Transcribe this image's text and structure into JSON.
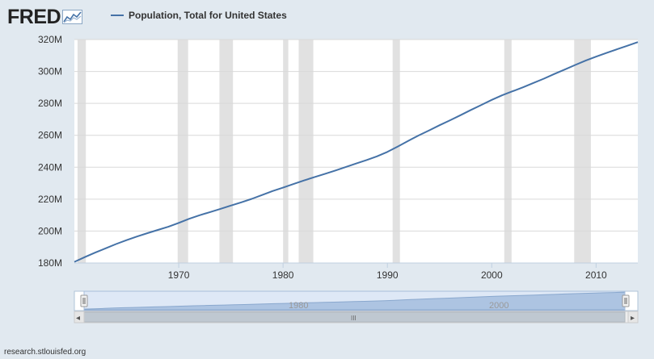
{
  "logo": {
    "text": "FRED",
    "icon": "fred-line-chart-icon"
  },
  "footer": {
    "source": "research.stlouisfed.org"
  },
  "navigator": {
    "tick_labels": [
      "1980",
      "2000"
    ],
    "scroll_left_arrow": "◂",
    "scroll_right_arrow": "▸",
    "scroll_grip": "III"
  },
  "colors": {
    "series": "#4572a7",
    "background": "#e1e9f0",
    "plot": "#ffffff",
    "recession": "#e1e1e1",
    "grid": "#d9d9d9",
    "navigator_fill": "#c2d6ee",
    "navigator_series": "#6d94c4"
  },
  "chart_data": {
    "type": "line",
    "title": "",
    "xlabel": "",
    "ylabel": "",
    "grid": true,
    "legend_position": "top-left",
    "xlim": [
      1960,
      2014
    ],
    "ylim": [
      180,
      320
    ],
    "x_ticks": [
      1970,
      1980,
      1990,
      2000,
      2010
    ],
    "y_ticks": [
      180,
      200,
      220,
      240,
      260,
      280,
      300,
      320
    ],
    "y_tick_labels": [
      "180M",
      "200M",
      "220M",
      "240M",
      "260M",
      "280M",
      "300M",
      "320M"
    ],
    "x_tick_labels": [
      "1970",
      "1980",
      "1990",
      "2000",
      "2010"
    ],
    "recessions": [
      [
        1960.3,
        1961.1
      ],
      [
        1969.9,
        1970.9
      ],
      [
        1973.9,
        1975.2
      ],
      [
        1980.0,
        1980.5
      ],
      [
        1981.5,
        1982.9
      ],
      [
        1990.5,
        1991.2
      ],
      [
        2001.2,
        2001.9
      ],
      [
        2007.9,
        2009.5
      ]
    ],
    "series": [
      {
        "name": "Population, Total for United States",
        "x": [
          1960,
          1961,
          1962,
          1963,
          1964,
          1965,
          1966,
          1967,
          1968,
          1969,
          1970,
          1971,
          1972,
          1973,
          1974,
          1975,
          1976,
          1977,
          1978,
          1979,
          1980,
          1981,
          1982,
          1983,
          1984,
          1985,
          1986,
          1987,
          1988,
          1989,
          1990,
          1991,
          1992,
          1993,
          1994,
          1995,
          1996,
          1997,
          1998,
          1999,
          2000,
          2001,
          2002,
          2003,
          2004,
          2005,
          2006,
          2007,
          2008,
          2009,
          2010,
          2011,
          2012,
          2013,
          2014
        ],
        "values": [
          180.7,
          183.7,
          186.5,
          189.2,
          191.9,
          194.3,
          196.6,
          198.7,
          200.7,
          202.7,
          205.1,
          207.7,
          209.9,
          211.9,
          213.9,
          216.0,
          218.0,
          220.2,
          222.6,
          225.1,
          227.2,
          229.5,
          231.7,
          233.8,
          235.8,
          237.9,
          240.1,
          242.3,
          244.5,
          246.8,
          249.6,
          253.0,
          256.5,
          259.9,
          263.1,
          266.3,
          269.4,
          272.6,
          275.9,
          279.0,
          282.2,
          285.1,
          287.6,
          290.1,
          292.8,
          295.5,
          298.4,
          301.2,
          304.1,
          306.8,
          309.3,
          311.6,
          313.9,
          316.1,
          318.4
        ]
      }
    ]
  }
}
